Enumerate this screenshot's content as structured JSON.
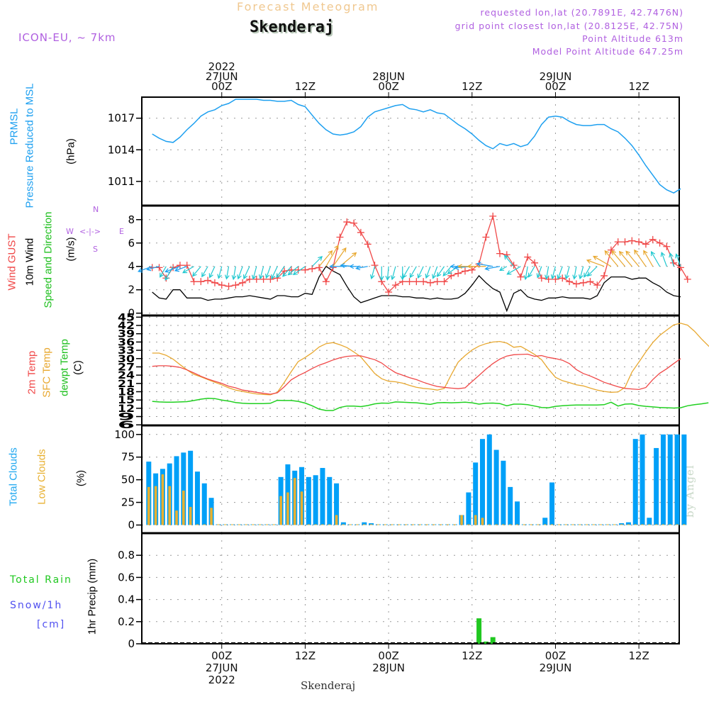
{
  "header": {
    "title": "Forecast Meteogram",
    "station": "Skenderaj",
    "model": "ICON-EU, ~ 7km",
    "requested_point": "requested lon,lat (20.7891E, 42.7476N)",
    "grid_point": "grid point closest lon,lat (20.8125E, 42.75N)",
    "point_altitude": "Point Altitude 613m",
    "model_altitude": "Model Point Altitude 647.25m"
  },
  "footer": {
    "station": "Skenderaj",
    "watermark": "by Angel"
  },
  "time_axis": {
    "top_labels": [
      {
        "hour": 0,
        "lines": [
          "2022",
          "27JUN",
          "00Z"
        ]
      },
      {
        "hour": 12,
        "lines": [
          "12Z"
        ]
      },
      {
        "hour": 24,
        "lines": [
          "28JUN",
          "00Z"
        ]
      },
      {
        "hour": 36,
        "lines": [
          "12Z"
        ]
      },
      {
        "hour": 48,
        "lines": [
          "29JUN",
          "00Z"
        ]
      },
      {
        "hour": 60,
        "lines": [
          "12Z"
        ]
      }
    ],
    "bottom_labels": [
      {
        "hour": 0,
        "lines": [
          "00Z",
          "27JUN",
          "2022"
        ]
      },
      {
        "hour": 12,
        "lines": [
          "12Z"
        ]
      },
      {
        "hour": 24,
        "lines": [
          "00Z",
          "28JUN"
        ]
      },
      {
        "hour": 36,
        "lines": [
          "12Z"
        ]
      },
      {
        "hour": 48,
        "lines": [
          "00Z",
          "29JUN"
        ]
      },
      {
        "hour": 60,
        "lines": [
          "12Z"
        ]
      }
    ],
    "range_hours": [
      -11.5,
      65.8
    ]
  },
  "panel_labels": {
    "pressure": {
      "l1": "PRMSL",
      "l2": "Pressure Reduced to MSL",
      "unit": "(hPa)"
    },
    "wind": {
      "gust": "Wind GUST",
      "wind10": "10m Wind",
      "speed_dir": "Speed and Direction",
      "unit": "(m/s)",
      "compass": {
        "n": "N",
        "s": "S",
        "w": "W",
        "e": "E",
        "arrows": "<-|->"
      }
    },
    "temp": {
      "t2m": "2m Temp",
      "sfc": "SFC Temp",
      "dewpt": "dewpt Temp",
      "unit": "(C)"
    },
    "clouds": {
      "total": "Total Clouds",
      "low": "Low Clouds",
      "unit": "(%)"
    },
    "precip": {
      "total_rain": "Total   Rain",
      "snow": "Snow/1h",
      "snow_unit": "[cm]",
      "axis": "1hr Precip (mm)"
    }
  },
  "colors": {
    "pressure": "#1ea0f0",
    "gust": "#f04848",
    "wind10": "#000000",
    "t2m": "#f04848",
    "sfc": "#e8a830",
    "dewpt": "#20d020",
    "total_clouds": "#00a0f8",
    "low_clouds": "#e8b030",
    "rain": "#20c820",
    "snow": "#5050f0",
    "meta": "#b060e0"
  },
  "chart_data": [
    {
      "id": "pressure",
      "type": "line",
      "title": "PRMSL Pressure Reduced to MSL",
      "ylabel": "(hPa)",
      "ylim": [
        1008.7,
        1019.0
      ],
      "yticks": [
        1011,
        1014,
        1017
      ],
      "grid": true,
      "x_start_hour": -10,
      "series": [
        {
          "name": "PRMSL",
          "values": [
            1015.5,
            1015.1,
            1014.8,
            1014.7,
            1015.2,
            1015.9,
            1016.5,
            1017.2,
            1017.6,
            1017.8,
            1018.2,
            1018.4,
            1018.8,
            1018.8,
            1018.8,
            1018.8,
            1018.7,
            1018.7,
            1018.6,
            1018.6,
            1018.7,
            1018.3,
            1018.1,
            1017.3,
            1016.5,
            1015.9,
            1015.5,
            1015.4,
            1015.5,
            1015.7,
            1016.2,
            1017.1,
            1017.6,
            1017.8,
            1018.0,
            1018.2,
            1018.3,
            1017.9,
            1017.8,
            1017.6,
            1017.8,
            1017.5,
            1017.4,
            1016.9,
            1016.4,
            1016.0,
            1015.5,
            1014.9,
            1014.4,
            1014.1,
            1014.6,
            1014.4,
            1014.6,
            1014.3,
            1014.5,
            1015.3,
            1016.4,
            1017.1,
            1017.2,
            1017.1,
            1016.7,
            1016.4,
            1016.3,
            1016.3,
            1016.4,
            1016.4,
            1016.0,
            1015.7,
            1015.1,
            1014.4,
            1013.5,
            1012.5,
            1011.6,
            1010.7,
            1010.2,
            1009.9,
            1010.3
          ]
        }
      ]
    },
    {
      "id": "wind",
      "type": "line",
      "title": "Wind GUST / 10m Wind Speed and Direction",
      "ylabel": "(m/s)",
      "ylim": [
        -0.2,
        9.2
      ],
      "yticks": [
        0,
        2,
        4,
        6,
        8
      ],
      "grid": true,
      "x_start_hour": -10,
      "series": [
        {
          "name": "Wind GUST",
          "values": [
            3.9,
            3.9,
            3.0,
            3.9,
            4.1,
            4.1,
            2.7,
            2.7,
            2.8,
            2.6,
            2.4,
            2.3,
            2.4,
            2.6,
            2.9,
            2.9,
            2.9,
            2.9,
            3.0,
            3.6,
            3.7,
            3.7,
            3.7,
            3.8,
            3.9,
            2.7,
            3.9,
            6.5,
            7.8,
            7.7,
            6.9,
            5.9,
            4.1,
            2.7,
            1.8,
            2.4,
            2.7,
            2.7,
            2.7,
            2.7,
            2.6,
            2.7,
            2.7,
            3.2,
            3.4,
            3.6,
            3.7,
            4.2,
            6.5,
            8.3,
            5.1,
            5.0,
            4.1,
            3.1,
            4.8,
            4.3,
            3.0,
            2.9,
            2.9,
            3.0,
            2.7,
            2.5,
            2.6,
            2.7,
            2.4,
            3.2,
            5.4,
            6.1,
            6.1,
            6.2,
            6.1,
            5.9,
            6.3,
            6.0,
            5.7,
            4.3,
            3.9,
            2.9
          ]
        },
        {
          "name": "10m Wind",
          "values": [
            1.8,
            1.3,
            1.2,
            2.0,
            2.0,
            1.3,
            1.3,
            1.3,
            1.1,
            1.2,
            1.2,
            1.3,
            1.4,
            1.4,
            1.5,
            1.4,
            1.3,
            1.2,
            1.5,
            1.5,
            1.4,
            1.4,
            1.7,
            1.6,
            3.1,
            4.0,
            3.6,
            3.3,
            2.3,
            1.4,
            0.9,
            1.1,
            1.3,
            1.5,
            1.5,
            1.5,
            1.4,
            1.4,
            1.3,
            1.3,
            1.2,
            1.3,
            1.2,
            1.2,
            1.3,
            1.7,
            2.4,
            3.2,
            2.6,
            2.1,
            1.8,
            0.2,
            1.7,
            2.0,
            1.4,
            1.2,
            1.1,
            1.3,
            1.3,
            1.4,
            1.3,
            1.3,
            1.3,
            1.2,
            1.5,
            2.6,
            3.1,
            3.1,
            3.1,
            2.9,
            3.0,
            3.0,
            2.6,
            2.3,
            1.8,
            1.5,
            1.4
          ]
        }
      ],
      "wind_direction_deg": [
        70,
        75,
        30,
        30,
        70,
        70,
        60,
        40,
        30,
        25,
        15,
        10,
        10,
        20,
        25,
        15,
        15,
        20,
        25,
        35,
        40,
        50,
        55,
        225,
        220,
        210,
        215,
        230,
        90,
        95,
        90,
        80,
        15,
        0,
        5,
        15,
        0,
        30,
        30,
        25,
        20,
        20,
        35,
        40,
        55,
        90,
        85,
        90,
        90,
        100,
        80,
        60,
        140,
        60,
        10,
        30,
        20,
        10,
        15,
        20,
        15,
        10,
        15,
        30,
        45,
        110,
        120,
        140,
        140,
        140,
        140,
        145,
        150,
        150,
        160,
        165,
        160
      ]
    },
    {
      "id": "temperature",
      "type": "line",
      "title": "2m Temp / SFC Temp / dewpt Temp",
      "ylabel": "(C)",
      "ylim": [
        5.8,
        45.6
      ],
      "yticks": [
        6,
        9,
        12,
        15,
        18,
        21,
        24,
        27,
        30,
        33,
        36,
        39,
        42,
        45
      ],
      "grid": true,
      "x_start_hour": -10,
      "series": [
        {
          "name": "2m Temp",
          "values": [
            27.2,
            27.4,
            27.4,
            27.2,
            26.8,
            25.9,
            24.8,
            23.6,
            22.6,
            21.8,
            21.0,
            20.0,
            19.4,
            18.6,
            18.2,
            17.8,
            17.4,
            17.1,
            17.6,
            19.8,
            22.3,
            23.8,
            25.0,
            26.4,
            27.6,
            28.5,
            29.5,
            30.3,
            30.8,
            31.0,
            31.0,
            30.3,
            29.6,
            28.4,
            26.5,
            24.9,
            24.0,
            23.1,
            22.4,
            21.4,
            20.6,
            19.9,
            19.6,
            19.3,
            19.1,
            19.4,
            21.7,
            23.9,
            26.2,
            28.2,
            29.8,
            30.9,
            31.4,
            31.5,
            31.6,
            30.8,
            31.1,
            30.4,
            30.0,
            29.4,
            28.2,
            26.0,
            24.6,
            23.7,
            22.6,
            21.4,
            20.6,
            19.8,
            19.2,
            19.0,
            18.8,
            19.5,
            22.4,
            24.7,
            26.3,
            28.2,
            30.0
          ]
        },
        {
          "name": "SFC Temp",
          "values": [
            32.0,
            32.0,
            31.2,
            29.8,
            27.8,
            25.9,
            24.3,
            23.4,
            22.4,
            21.4,
            20.5,
            19.4,
            18.6,
            18.1,
            17.6,
            17.2,
            17.0,
            16.9,
            17.8,
            21.4,
            25.3,
            28.9,
            30.4,
            32.1,
            34.2,
            35.4,
            35.8,
            35.0,
            34.0,
            32.4,
            30.6,
            27.6,
            24.6,
            22.7,
            21.8,
            21.6,
            21.1,
            20.3,
            19.6,
            19.2,
            19.0,
            18.6,
            19.2,
            24.1,
            28.7,
            31.1,
            33.1,
            34.5,
            35.4,
            36.0,
            36.2,
            35.6,
            34.1,
            34.4,
            33.0,
            31.5,
            29.6,
            26.2,
            23.2,
            22.0,
            21.3,
            20.5,
            20.1,
            19.3,
            18.6,
            18.1,
            17.8,
            17.9,
            19.6,
            25.1,
            28.7,
            32.4,
            35.8,
            38.4,
            40.3,
            42.2,
            42.8,
            42.1,
            39.9,
            37.1,
            34.6,
            32.3
          ]
        },
        {
          "name": "dewpt Temp",
          "values": [
            14.5,
            14.3,
            14.2,
            14.2,
            14.3,
            14.4,
            14.8,
            15.3,
            15.6,
            15.5,
            15.0,
            14.6,
            14.1,
            13.8,
            13.7,
            13.7,
            13.7,
            13.8,
            14.9,
            14.8,
            14.8,
            14.5,
            13.9,
            12.9,
            11.7,
            11.2,
            11.2,
            12.3,
            12.8,
            12.8,
            12.6,
            13.0,
            13.6,
            13.9,
            13.8,
            14.3,
            14.2,
            14.1,
            14.0,
            13.7,
            13.4,
            14.0,
            14.1,
            14.0,
            14.1,
            14.2,
            14.0,
            13.5,
            13.8,
            13.9,
            13.7,
            12.9,
            13.5,
            13.5,
            13.3,
            12.8,
            12.3,
            12.2,
            12.7,
            12.9,
            13.1,
            13.2,
            13.2,
            13.2,
            13.2,
            13.3,
            14.2,
            12.8,
            13.5,
            13.6,
            13.0,
            12.7,
            12.5,
            12.3,
            12.2,
            12.1,
            12.2,
            12.9,
            13.3,
            13.6,
            14.0
          ]
        }
      ]
    },
    {
      "id": "clouds",
      "type": "bar",
      "title": "Total Clouds / Low Clouds",
      "ylabel": "(%)",
      "ylim": [
        -9,
        110
      ],
      "yticks": [
        0,
        25,
        50,
        75,
        100
      ],
      "grid": true,
      "x_start_hour": -11,
      "series": [
        {
          "name": "Total Clouds",
          "values": [
            70,
            57,
            62,
            68,
            76,
            80,
            82,
            59,
            46,
            30,
            0,
            0,
            0,
            0,
            0,
            0,
            0,
            0,
            0,
            53,
            67,
            60,
            64,
            53,
            55,
            63,
            53,
            46,
            3,
            0,
            0,
            3,
            2,
            0,
            0,
            0,
            0,
            0,
            0,
            0,
            0,
            0,
            0,
            0,
            0,
            11,
            36,
            69,
            95,
            100,
            83,
            71,
            42,
            26,
            0,
            0,
            0,
            8,
            47,
            0,
            0,
            0,
            0,
            0,
            0,
            0,
            0,
            0,
            2,
            3,
            95,
            100,
            8,
            85,
            100,
            100,
            100,
            100
          ]
        },
        {
          "name": "Low Clouds",
          "values": [
            42,
            43,
            56,
            43,
            16,
            38,
            20,
            0,
            0,
            19,
            0,
            0,
            0,
            0,
            0,
            0,
            0,
            0,
            0,
            32,
            36,
            52,
            37,
            0,
            0,
            0,
            0,
            11,
            0,
            0,
            0,
            0,
            0,
            0,
            0,
            0,
            0,
            0,
            0,
            0,
            0,
            0,
            0,
            0,
            0,
            11,
            0,
            11,
            8,
            0,
            0,
            0,
            0,
            0,
            0,
            0,
            0,
            0,
            0,
            0,
            0,
            0,
            0,
            0,
            0,
            0,
            0,
            0,
            0,
            0,
            0,
            0,
            0,
            0,
            0,
            0,
            0,
            0
          ]
        }
      ]
    },
    {
      "id": "precip",
      "type": "bar",
      "title": "1hr Precip (mm)",
      "ylabel": "1hr Precip (mm)",
      "ylim": [
        0,
        1.0
      ],
      "yticks": [
        0,
        0.2,
        0.4,
        0.6,
        0.8
      ],
      "grid": true,
      "series": [
        {
          "name": "Total Rain",
          "points": [
            {
              "hour": 37,
              "value": 0.23
            },
            {
              "hour": 38,
              "value": 0.02
            },
            {
              "hour": 39,
              "value": 0.06
            }
          ]
        },
        {
          "name": "Snow/1h",
          "points": []
        }
      ]
    }
  ]
}
